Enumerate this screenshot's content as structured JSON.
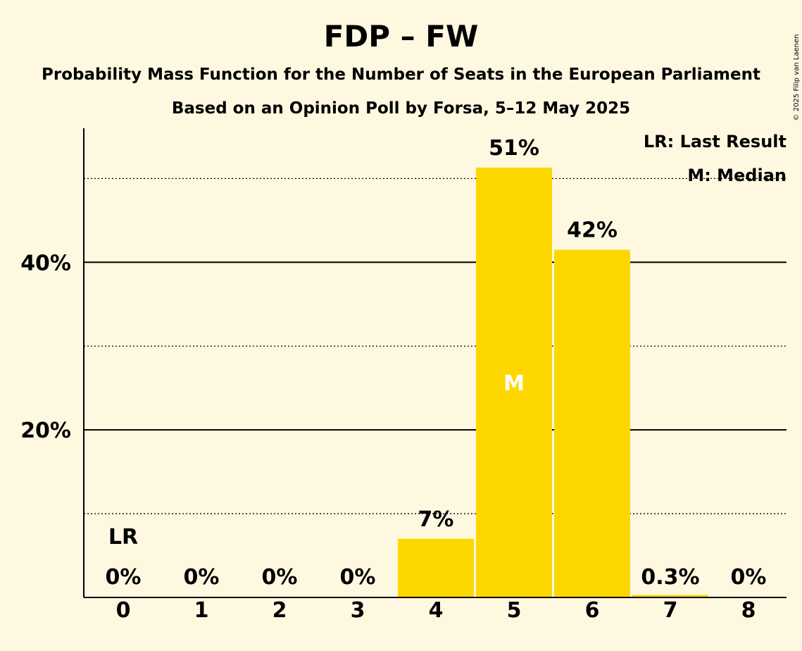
{
  "chart_data": {
    "type": "bar",
    "title": "FDP – FW",
    "subtitle": "Probability Mass Function for the Number of Seats in the European Parliament",
    "subtitle2": "Based on an Opinion Poll by Forsa, 5–12 May 2025",
    "categories": [
      "0",
      "1",
      "2",
      "3",
      "4",
      "5",
      "6",
      "7",
      "8"
    ],
    "values": [
      0,
      0,
      0,
      0,
      7,
      51.3,
      41.5,
      0.3,
      0
    ],
    "value_labels": [
      "0%",
      "0%",
      "0%",
      "0%",
      "7%",
      "51%",
      "42%",
      "0.3%",
      "0%"
    ],
    "ylim": [
      0,
      56
    ],
    "yticks": [
      {
        "value": 20,
        "label": "20%"
      },
      {
        "value": 40,
        "label": "40%"
      }
    ],
    "minor_gridlines": [
      10,
      30,
      50
    ],
    "last_result_index": 0,
    "last_result_label": "LR",
    "median_index": 5,
    "median_label": "M",
    "legend": [
      "LR: Last Result",
      "M: Median"
    ],
    "bar_color": "#FFD700",
    "copyright": "© 2025 Filip van Laenen"
  }
}
